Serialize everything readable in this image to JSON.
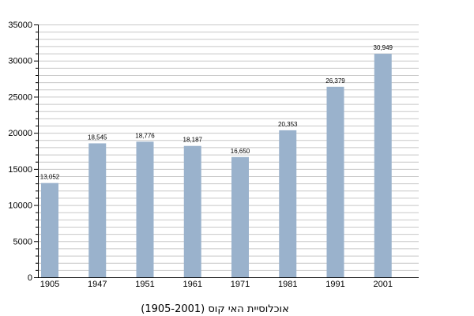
{
  "chart_data": {
    "type": "bar",
    "title": "",
    "caption": "אוכלוסיית האי קוס (1905-2001)",
    "xlabel": "",
    "ylabel": "",
    "categories": [
      "1905",
      "1947",
      "1951",
      "1961",
      "1971",
      "1981",
      "1991",
      "2001"
    ],
    "values": [
      13052,
      18545,
      18776,
      18187,
      16650,
      20353,
      26379,
      30949
    ],
    "data_labels": [
      "13,052",
      "18,545",
      "18,776",
      "18,187",
      "16,650",
      "20,353",
      "26,379",
      "30,949"
    ],
    "ylim": [
      0,
      35000
    ],
    "y_major_step": 5000,
    "y_minor_step": 1000,
    "grid": true,
    "legend": "none",
    "bar_color": "#9ab2cc",
    "grid_color": "#c8c8c8"
  }
}
